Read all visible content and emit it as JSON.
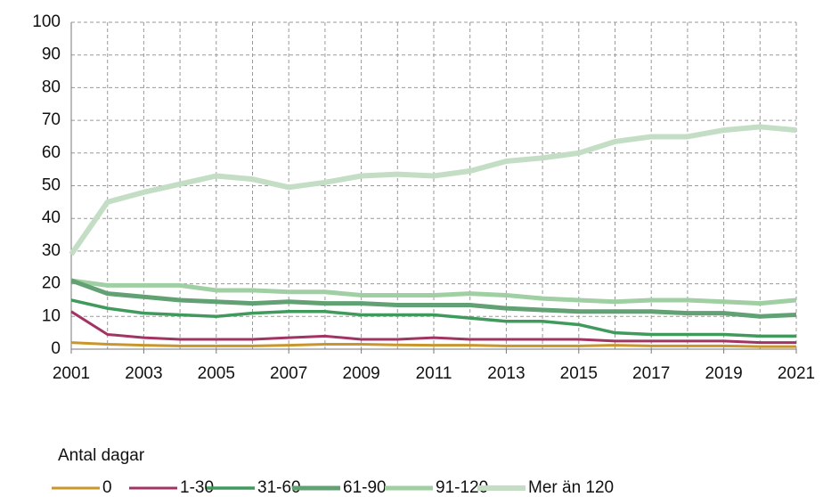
{
  "chart_data": {
    "type": "line",
    "x": [
      2001,
      2002,
      2003,
      2004,
      2005,
      2006,
      2007,
      2008,
      2009,
      2010,
      2011,
      2012,
      2013,
      2014,
      2015,
      2016,
      2017,
      2018,
      2019,
      2020,
      2021
    ],
    "xlim": [
      2001,
      2021
    ],
    "xticks": [
      2001,
      2003,
      2005,
      2007,
      2009,
      2011,
      2013,
      2015,
      2017,
      2019,
      2021
    ],
    "ylim": [
      0,
      100
    ],
    "yticks": [
      0,
      10,
      20,
      30,
      40,
      50,
      60,
      70,
      80,
      90,
      100
    ],
    "grid": true,
    "legend_title": "Antal dagar",
    "legend": "bottom",
    "series": [
      {
        "name": "0",
        "color": "#c8962d",
        "width": 3,
        "values": [
          2,
          1.5,
          1.2,
          1,
          1,
          1,
          1.2,
          1.5,
          1.5,
          1.3,
          1.2,
          1.2,
          1,
          1,
          1,
          1.2,
          1,
          1,
          1,
          0.8,
          0.8
        ]
      },
      {
        "name": "1-30",
        "color": "#a23463",
        "width": 3,
        "values": [
          11.5,
          4.5,
          3.5,
          3,
          3,
          3,
          3.5,
          4,
          3,
          3,
          3.5,
          3,
          3,
          3,
          3,
          2.5,
          2.5,
          2.5,
          2.5,
          2,
          2
        ]
      },
      {
        "name": "31-60",
        "color": "#3f9a5c",
        "width": 3.5,
        "values": [
          15,
          12.5,
          11,
          10.5,
          10,
          11,
          11.5,
          11.5,
          10.5,
          10.5,
          10.5,
          9.5,
          8.5,
          8.5,
          7.5,
          5,
          4.5,
          4.5,
          4.5,
          4,
          4
        ]
      },
      {
        "name": "61-90",
        "color": "#62a173",
        "width": 5,
        "values": [
          21,
          17,
          16,
          15,
          14.5,
          14,
          14.5,
          14,
          14,
          13.5,
          13.5,
          13.5,
          12.5,
          12,
          11.5,
          11.5,
          11.5,
          11,
          11,
          10,
          10.5
        ]
      },
      {
        "name": "91-120",
        "color": "#9fcfa3",
        "width": 5,
        "values": [
          21,
          19.5,
          19.5,
          19.5,
          18,
          18,
          17.5,
          17.5,
          16.5,
          16.5,
          16.5,
          17,
          16.5,
          15.5,
          15,
          14.5,
          15,
          15,
          14.5,
          14,
          15
        ]
      },
      {
        "name": "Mer än 120",
        "color": "#c3dec5",
        "width": 6,
        "values": [
          29,
          45,
          48,
          50.5,
          53,
          52,
          49.5,
          51,
          53,
          53.5,
          53,
          54.5,
          57.5,
          58.5,
          60,
          63.5,
          65,
          65,
          67,
          68,
          67
        ]
      }
    ]
  }
}
